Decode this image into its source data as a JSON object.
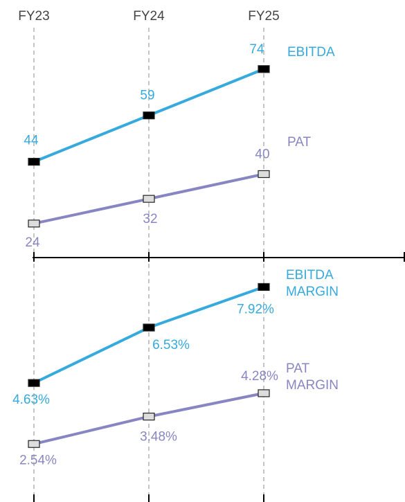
{
  "chart_data": [
    {
      "type": "line",
      "categories": [
        "FY23",
        "FY24",
        "FY25"
      ],
      "series": [
        {
          "name": "EBITDA",
          "color": "#36a9dd",
          "marker_color": "#000000",
          "values": [
            44,
            59,
            74
          ]
        },
        {
          "name": "PAT",
          "color": "#8886c2",
          "marker_color": "#dddddd",
          "values": [
            24,
            32,
            40
          ]
        }
      ],
      "ylim": [
        15,
        80
      ]
    },
    {
      "type": "line",
      "series": [
        {
          "name": "EBITDA MARGIN",
          "color": "#36a9dd",
          "marker_color": "#000000",
          "values": [
            4.63,
            6.53,
            7.92
          ],
          "value_labels": [
            "4.63%",
            "6.53%",
            "7.92%"
          ]
        },
        {
          "name": "PAT MARGIN",
          "color": "#8886c2",
          "marker_color": "#dddddd",
          "values": [
            2.54,
            3.48,
            4.28
          ],
          "value_labels": [
            "2.54%",
            "3.48%",
            "4.28%"
          ]
        }
      ],
      "ylim": [
        2,
        8.5
      ]
    }
  ]
}
